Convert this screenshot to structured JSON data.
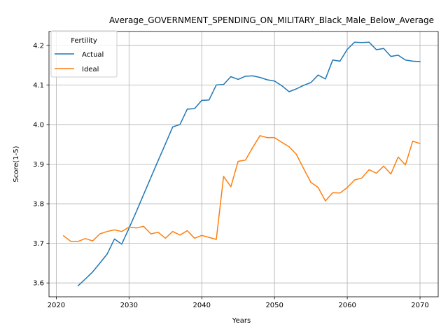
{
  "chart_data": {
    "type": "line",
    "title": "Average_GOVERNMENT_SPENDING_ON_MILITARY_Black_Male_Below_Average",
    "xlabel": "Years",
    "ylabel": "Score(1-5)",
    "xlim": [
      2019,
      2072.5
    ],
    "ylim": [
      3.565,
      4.235
    ],
    "x_ticks": [
      2020,
      2030,
      2040,
      2050,
      2060,
      2070
    ],
    "y_ticks": [
      3.6,
      3.7,
      3.8,
      3.9,
      4.0,
      4.1,
      4.2
    ],
    "y_tick_labels": [
      "3.6",
      "3.7",
      "3.8",
      "3.9",
      "4.0",
      "4.1",
      "4.2"
    ],
    "grid": true,
    "legend": {
      "title": "Fertility",
      "position": "top-left"
    },
    "series": [
      {
        "name": "Actual",
        "color": "#1f77b4",
        "x": [
          2023,
          2024,
          2025,
          2026,
          2027,
          2028,
          2029,
          2030,
          2031,
          2032,
          2033,
          2034,
          2035,
          2036,
          2037,
          2038,
          2039,
          2040,
          2041,
          2042,
          2043,
          2044,
          2045,
          2046,
          2047,
          2048,
          2049,
          2050,
          2051,
          2052,
          2053,
          2054,
          2055,
          2056,
          2057,
          2058,
          2059,
          2060,
          2061,
          2062,
          2063,
          2064,
          2065,
          2066,
          2067,
          2068,
          2069,
          2070
        ],
        "values": [
          3.593,
          3.61,
          3.628,
          3.65,
          3.673,
          3.711,
          3.698,
          3.738,
          3.78,
          3.823,
          3.866,
          3.909,
          3.951,
          3.994,
          4.0,
          4.039,
          4.04,
          4.061,
          4.062,
          4.1,
          4.101,
          4.121,
          4.114,
          4.122,
          4.123,
          4.119,
          4.113,
          4.11,
          4.098,
          4.083,
          4.09,
          4.099,
          4.106,
          4.125,
          4.115,
          4.163,
          4.16,
          4.19,
          4.208,
          4.207,
          4.208,
          4.189,
          4.192,
          4.172,
          4.175,
          4.163,
          4.16,
          4.159
        ]
      },
      {
        "name": "Ideal",
        "color": "#ff7f0e",
        "x": [
          2021,
          2022,
          2023,
          2024,
          2025,
          2026,
          2027,
          2028,
          2029,
          2030,
          2031,
          2032,
          2033,
          2034,
          2035,
          2036,
          2037,
          2038,
          2039,
          2040,
          2041,
          2042,
          2043,
          2044,
          2045,
          2046,
          2047,
          2048,
          2049,
          2050,
          2051,
          2052,
          2053,
          2054,
          2055,
          2056,
          2057,
          2058,
          2059,
          2060,
          2061,
          2062,
          2063,
          2064,
          2065,
          2066,
          2067,
          2068,
          2069,
          2070
        ],
        "values": [
          3.719,
          3.705,
          3.705,
          3.712,
          3.706,
          3.724,
          3.73,
          3.734,
          3.73,
          3.741,
          3.739,
          3.743,
          3.724,
          3.728,
          3.713,
          3.73,
          3.721,
          3.732,
          3.713,
          3.72,
          3.715,
          3.71,
          3.869,
          3.843,
          3.907,
          3.91,
          3.942,
          3.972,
          3.967,
          3.967,
          3.955,
          3.944,
          3.925,
          3.889,
          3.854,
          3.841,
          3.807,
          3.828,
          3.827,
          3.841,
          3.86,
          3.865,
          3.886,
          3.877,
          3.895,
          3.875,
          3.918,
          3.898,
          3.958,
          3.952
        ]
      }
    ]
  }
}
